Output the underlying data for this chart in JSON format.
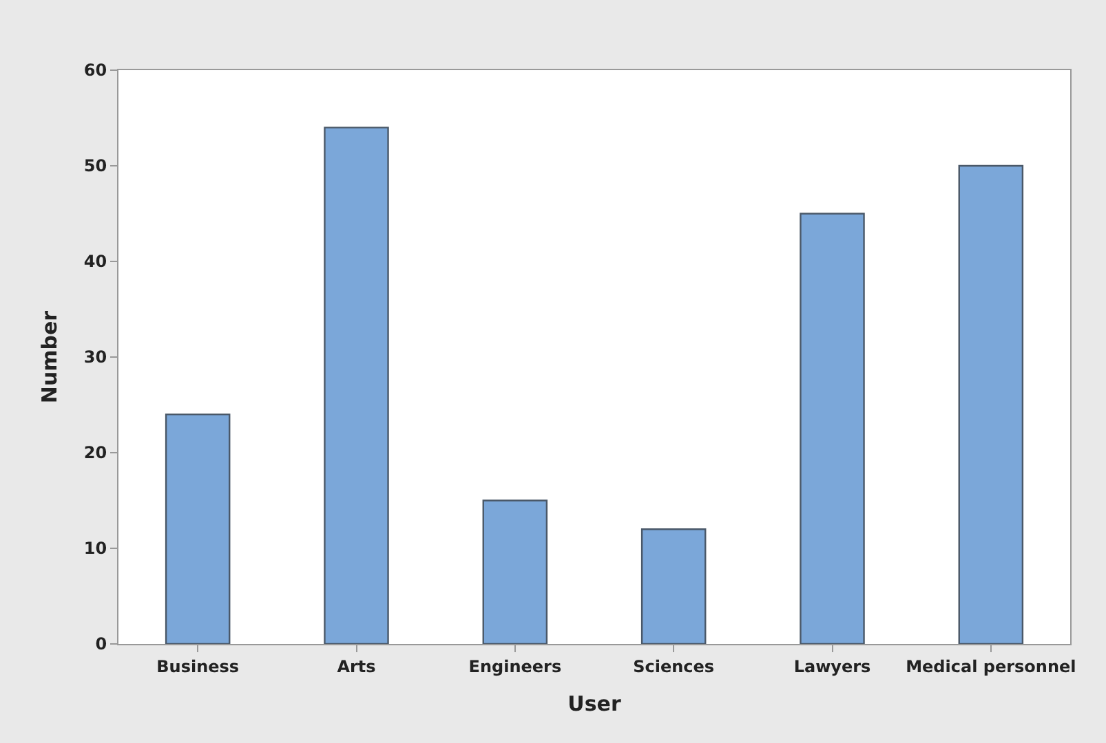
{
  "chart_data": {
    "type": "bar",
    "xlabel": "User",
    "ylabel": "Number",
    "categories": [
      "Business",
      "Arts",
      "Engineers",
      "Sciences",
      "Lawyers",
      "Medical personnel"
    ],
    "values": [
      24,
      54,
      15,
      12,
      45,
      50
    ],
    "color": "#7ba7d9",
    "ylim": [
      0,
      60
    ],
    "yticks": [
      0,
      10,
      20,
      30,
      40,
      50,
      60
    ]
  }
}
